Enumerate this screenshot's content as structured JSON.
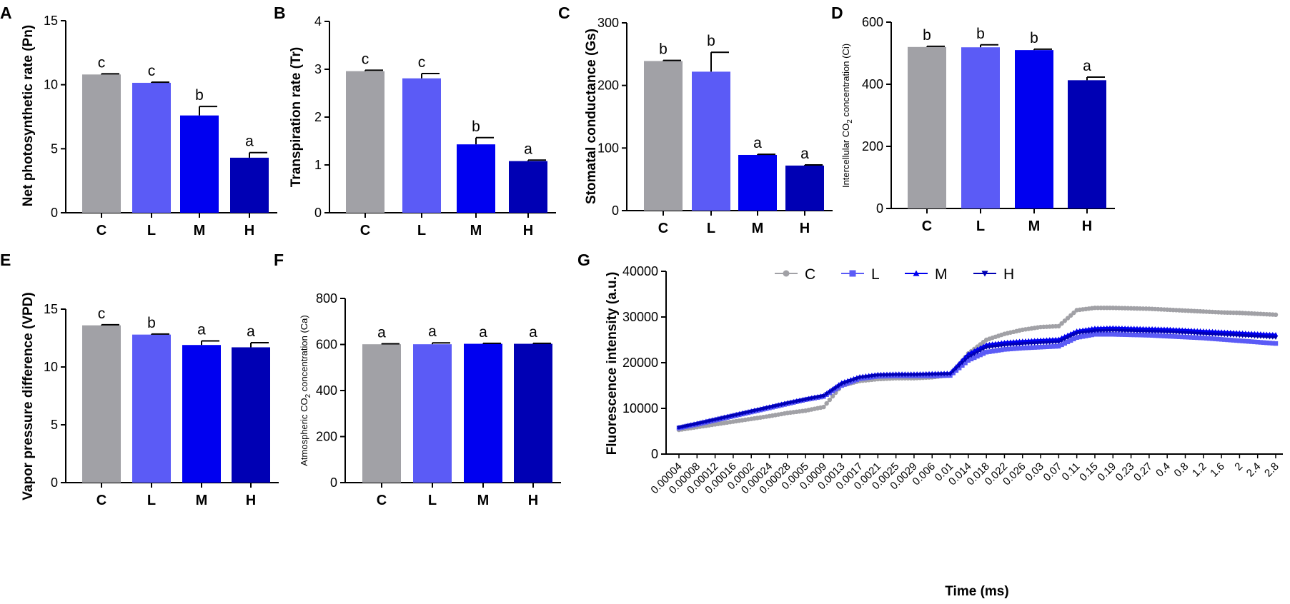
{
  "chart_data": [
    {
      "panel": "A",
      "type": "bar",
      "title": "",
      "ylabel": "Net photosynthetic rate (Pn)",
      "xlabel": "",
      "ylim": [
        0,
        15
      ],
      "yticks": [
        "0",
        "5",
        "10",
        "15"
      ],
      "ytick_values": [
        0,
        5,
        10,
        15
      ],
      "categories": [
        "C",
        "L",
        "M",
        "H"
      ],
      "values": [
        10.8,
        10.15,
        7.6,
        4.3
      ],
      "errors": [
        0.05,
        0.05,
        0.7,
        0.4
      ],
      "significance": [
        "c",
        "c",
        "b",
        "a"
      ],
      "colors": [
        "#a1a1a6",
        "#5b5bf6",
        "#0000f0",
        "#0000b4"
      ]
    },
    {
      "panel": "B",
      "type": "bar",
      "title": "",
      "ylabel": "Transpiration rate (Tr)",
      "xlabel": "",
      "ylim": [
        0,
        4
      ],
      "yticks": [
        "0",
        "1",
        "2",
        "3",
        "4"
      ],
      "ytick_values": [
        0,
        1,
        2,
        3,
        4
      ],
      "categories": [
        "C",
        "L",
        "M",
        "H"
      ],
      "values": [
        2.96,
        2.81,
        1.43,
        1.08
      ],
      "errors": [
        0.02,
        0.1,
        0.14,
        0.02
      ],
      "significance": [
        "c",
        "c",
        "b",
        "a"
      ],
      "colors": [
        "#a1a1a6",
        "#5b5bf6",
        "#0000f0",
        "#0000b4"
      ]
    },
    {
      "panel": "C",
      "type": "bar",
      "title": "",
      "ylabel": "Stomatal conductance (Gs)",
      "xlabel": "",
      "ylim": [
        0,
        300
      ],
      "yticks": [
        "0",
        "100",
        "200",
        "300"
      ],
      "ytick_values": [
        0,
        100,
        200,
        300
      ],
      "categories": [
        "C",
        "L",
        "M",
        "H"
      ],
      "values": [
        239,
        222,
        89,
        72
      ],
      "errors": [
        1,
        31,
        1,
        1
      ],
      "significance": [
        "b",
        "b",
        "a",
        "a"
      ],
      "colors": [
        "#a1a1a6",
        "#5b5bf6",
        "#0000f0",
        "#0000b4"
      ]
    },
    {
      "panel": "D",
      "type": "bar",
      "title": "",
      "ylabel_pre": "Intercellular CO",
      "ylabel_sub": "2",
      "ylabel_post": " concentration (Ci)",
      "xlabel": "",
      "ylim": [
        0,
        600
      ],
      "yticks": [
        "0",
        "200",
        "400",
        "600"
      ],
      "ytick_values": [
        0,
        200,
        400,
        600
      ],
      "categories": [
        "C",
        "L",
        "M",
        "H"
      ],
      "values": [
        520,
        519,
        510,
        413
      ],
      "errors": [
        2,
        8,
        3,
        10
      ],
      "significance": [
        "b",
        "b",
        "b",
        "a"
      ],
      "colors": [
        "#a1a1a6",
        "#5b5bf6",
        "#0000f0",
        "#0000b4"
      ]
    },
    {
      "panel": "E",
      "type": "bar",
      "title": "",
      "ylabel": "Vapor pressure difference (VPD)",
      "xlabel": "",
      "ylim": [
        0,
        15
      ],
      "yticks": [
        "0",
        "5",
        "10",
        "15"
      ],
      "ytick_values": [
        0,
        5,
        10,
        15
      ],
      "categories": [
        "C",
        "L",
        "M",
        "H"
      ],
      "values": [
        13.6,
        12.8,
        11.9,
        11.7
      ],
      "errors": [
        0.05,
        0.05,
        0.35,
        0.4
      ],
      "significance": [
        "c",
        "b",
        "a",
        "a"
      ],
      "colors": [
        "#a1a1a6",
        "#5b5bf6",
        "#0000f0",
        "#0000b4"
      ]
    },
    {
      "panel": "F",
      "type": "bar",
      "title": "",
      "ylabel_pre": "Atmospheric CO",
      "ylabel_sub": "2",
      "ylabel_post": " concentration (Ca)",
      "xlabel": "",
      "ylim": [
        0,
        800
      ],
      "yticks": [
        "0",
        "200",
        "400",
        "600",
        "800"
      ],
      "ytick_values": [
        0,
        200,
        400,
        600,
        800
      ],
      "categories": [
        "C",
        "L",
        "M",
        "H"
      ],
      "values": [
        601,
        601,
        603,
        603
      ],
      "errors": [
        2,
        6,
        2,
        2
      ],
      "significance": [
        "a",
        "a",
        "a",
        "a"
      ],
      "colors": [
        "#a1a1a6",
        "#5b5bf6",
        "#0000f0",
        "#0000b4"
      ]
    },
    {
      "panel": "G",
      "type": "line",
      "title": "",
      "ylabel": "Fluorescence intensity (a.u.)",
      "xlabel": "Time (ms)",
      "ylim": [
        0,
        40000
      ],
      "yticks": [
        "0",
        "10000",
        "20000",
        "30000",
        "40000"
      ],
      "ytick_values": [
        0,
        10000,
        20000,
        30000,
        40000
      ],
      "xticks": [
        "0.00004",
        "0.00008",
        "0.00012",
        "0.00016",
        "0.0002",
        "0.00024",
        "0.00028",
        "0.0005",
        "0.0009",
        "0.0013",
        "0.0017",
        "0.0021",
        "0.0025",
        "0.0029",
        "0.006",
        "0.01",
        "0.014",
        "0.018",
        "0.022",
        "0.026",
        "0.03",
        "0.07",
        "0.11",
        "0.15",
        "0.19",
        "0.23",
        "0.27",
        "0.4",
        "0.8",
        "1.2",
        "1.6",
        "2",
        "2.4",
        "2.8"
      ],
      "legend": [
        "C",
        "L",
        "M",
        "H"
      ],
      "legend_position": "top",
      "series": [
        {
          "name": "C",
          "color": "#a1a1a6",
          "marker": "circle",
          "values": [
            5300,
            5900,
            6500,
            7100,
            7700,
            8300,
            9000,
            9500,
            10300,
            15000,
            16000,
            16400,
            16600,
            16600,
            16800,
            17300,
            22000,
            25000,
            26300,
            27200,
            27800,
            28000,
            31500,
            32000,
            32000,
            31900,
            31800,
            31600,
            31400,
            31200,
            31000,
            30900,
            30700,
            30500
          ]
        },
        {
          "name": "L",
          "color": "#5b5bf6",
          "marker": "square",
          "values": [
            5700,
            6500,
            7400,
            8300,
            9200,
            10100,
            11000,
            11900,
            12600,
            15000,
            16500,
            17000,
            17100,
            17100,
            17100,
            17200,
            20500,
            22300,
            22900,
            23200,
            23400,
            23600,
            25500,
            26200,
            26200,
            26100,
            26000,
            25800,
            25600,
            25400,
            25100,
            24800,
            24500,
            24200
          ]
        },
        {
          "name": "M",
          "color": "#0000f0",
          "marker": "triangle-up",
          "values": [
            5900,
            6800,
            7700,
            8600,
            9500,
            10400,
            11300,
            12100,
            12900,
            15700,
            17000,
            17500,
            17600,
            17600,
            17700,
            17800,
            22000,
            24000,
            24500,
            24800,
            25000,
            25200,
            27000,
            27600,
            27700,
            27600,
            27500,
            27400,
            27200,
            27000,
            26800,
            26600,
            26400,
            26200
          ]
        },
        {
          "name": "H",
          "color": "#0000b4",
          "marker": "triangle-down",
          "values": [
            5800,
            6600,
            7500,
            8400,
            9300,
            10200,
            11100,
            11900,
            12700,
            15300,
            16700,
            17200,
            17300,
            17300,
            17400,
            17500,
            21200,
            23300,
            23800,
            24100,
            24300,
            24500,
            26400,
            26900,
            27000,
            26900,
            26800,
            26700,
            26500,
            26300,
            26100,
            25900,
            25700,
            25500
          ]
        }
      ]
    }
  ],
  "panel_letters": [
    "A",
    "B",
    "C",
    "D",
    "E",
    "F",
    "G"
  ]
}
